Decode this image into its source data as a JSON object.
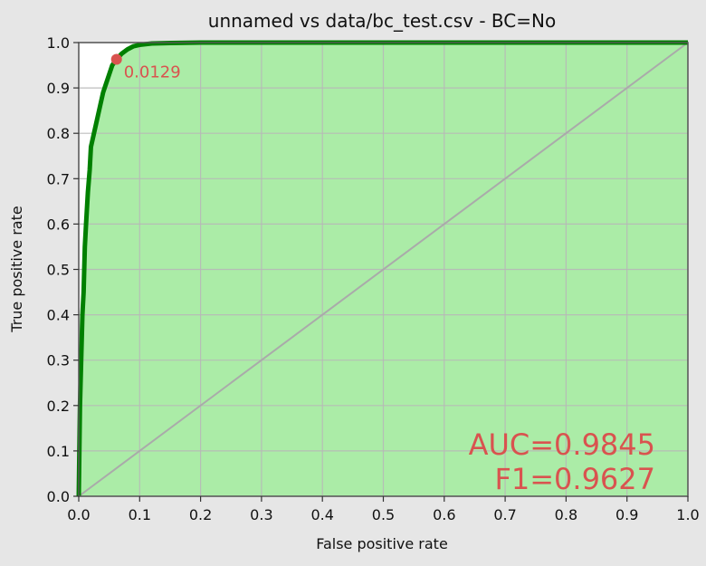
{
  "chart_data": {
    "type": "area",
    "title": "unnamed vs data/bc_test.csv - BC=No",
    "xlabel": "False positive rate",
    "ylabel": "True positive rate",
    "xlim": [
      0,
      1
    ],
    "ylim": [
      0,
      1
    ],
    "xticks": [
      "0.0",
      "0.1",
      "0.2",
      "0.3",
      "0.4",
      "0.5",
      "0.6",
      "0.7",
      "0.8",
      "0.9",
      "1.0"
    ],
    "yticks": [
      "0.0",
      "0.1",
      "0.2",
      "0.3",
      "0.4",
      "0.5",
      "0.6",
      "0.7",
      "0.8",
      "0.9",
      "1.0"
    ],
    "grid": true,
    "series": [
      {
        "color": "#008000",
        "fill_color": "#abeca7",
        "x": [
          0.0,
          0.002,
          0.004,
          0.006,
          0.008,
          0.01,
          0.012,
          0.015,
          0.018,
          0.02,
          0.025,
          0.03,
          0.035,
          0.04,
          0.045,
          0.05,
          0.055,
          0.062,
          0.07,
          0.08,
          0.09,
          0.1,
          0.12,
          0.15,
          0.2,
          0.3,
          0.5,
          0.7,
          1.0
        ],
        "y": [
          0.0,
          0.2,
          0.3,
          0.4,
          0.45,
          0.55,
          0.6,
          0.67,
          0.72,
          0.77,
          0.8,
          0.83,
          0.86,
          0.89,
          0.91,
          0.93,
          0.95,
          0.963,
          0.975,
          0.985,
          0.992,
          0.995,
          0.998,
          0.999,
          1.0,
          1.0,
          1.0,
          1.0,
          1.0
        ]
      }
    ],
    "diagonal": {
      "color": "#aaaaaa",
      "x": [
        0,
        1
      ],
      "y": [
        0,
        1
      ]
    },
    "marker": {
      "x": 0.062,
      "y": 0.963,
      "label": "0.0129",
      "color": "#d9534f"
    },
    "annotations": [
      "AUC=0.9845",
      "F1=0.9627"
    ],
    "annotation_color": "#d9534f"
  }
}
